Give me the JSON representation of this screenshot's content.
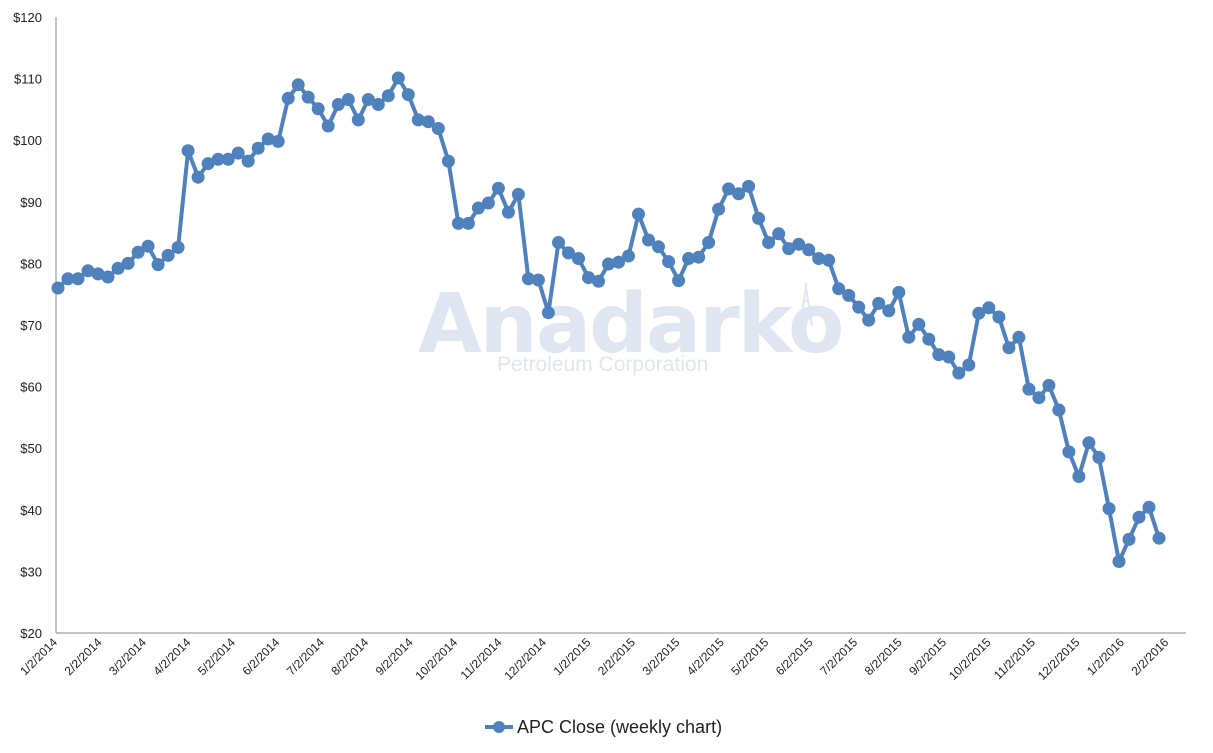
{
  "chart_data": {
    "type": "line",
    "title": "",
    "xlabel": "",
    "ylabel": "",
    "ylim": [
      20,
      120
    ],
    "y_ticks": [
      "$20",
      "$30",
      "$40",
      "$50",
      "$60",
      "$70",
      "$80",
      "$90",
      "$100",
      "$110",
      "$120"
    ],
    "x_tick_labels": [
      "1/2/2014",
      "2/2/2014",
      "3/2/2014",
      "4/2/2014",
      "5/2/2014",
      "6/2/2014",
      "7/2/2014",
      "8/2/2014",
      "9/2/2014",
      "10/2/2014",
      "11/2/2014",
      "12/2/2014",
      "1/2/2015",
      "2/2/2015",
      "3/2/2015",
      "4/2/2015",
      "5/2/2015",
      "6/2/2015",
      "7/2/2015",
      "8/2/2015",
      "9/2/2015",
      "10/2/2015",
      "11/2/2015",
      "12/2/2015",
      "1/2/2016",
      "2/2/2016"
    ],
    "grid": false,
    "legend_position": "bottom",
    "series": [
      {
        "name": "APC Close (weekly chart)",
        "color": "#4f81bd",
        "values": [
          76,
          77.5,
          77.5,
          78.8,
          78.3,
          77.8,
          79.2,
          80,
          81.8,
          82.8,
          79.8,
          81.3,
          82.6,
          98.3,
          94,
          96.2,
          96.9,
          96.9,
          97.9,
          96.6,
          98.7,
          100.2,
          99.8,
          106.8,
          109,
          107,
          105.1,
          102.3,
          105.8,
          106.6,
          103.3,
          106.6,
          105.8,
          107.2,
          110.1,
          107.4,
          103.3,
          103,
          101.9,
          96.6,
          86.5,
          86.5,
          89,
          89.8,
          92.2,
          88.3,
          91.2,
          77.5,
          77.3,
          72,
          83.4,
          81.7,
          80.8,
          77.7,
          77.1,
          79.9,
          80.2,
          81.2,
          88,
          83.8,
          82.7,
          80.3,
          77.2,
          80.8,
          81,
          83.4,
          88.8,
          92.1,
          91.3,
          92.5,
          87.3,
          83.4,
          84.8,
          82.4,
          83.1,
          82.2,
          80.8,
          80.5,
          75.9,
          74.8,
          72.9,
          70.8,
          73.5,
          72.3,
          75.3,
          68,
          70.1,
          67.7,
          65.2,
          64.8,
          62.2,
          63.5,
          71.9,
          72.8,
          71.3,
          66.3,
          68,
          59.6,
          58.2,
          60.2,
          56.2,
          49.4,
          45.4,
          50.9,
          48.5,
          40.2,
          31.6,
          35.2,
          38.8,
          40.4,
          35.4
        ]
      }
    ]
  },
  "watermark": {
    "brand": "Anadarko",
    "subtitle": "Petroleum Corporation"
  }
}
